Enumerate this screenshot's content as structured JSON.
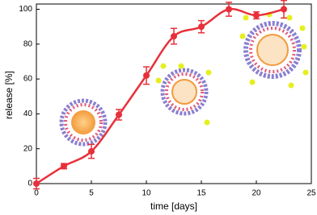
{
  "chart_data": {
    "type": "scatter",
    "x": [
      0,
      2.5,
      5,
      7.5,
      10,
      12.5,
      15,
      17.5,
      20,
      22.5
    ],
    "values": [
      0,
      10,
      18.5,
      39.5,
      62,
      84.5,
      90,
      100,
      96.5,
      100
    ],
    "errors": [
      3,
      1.5,
      4,
      3,
      5,
      4.5,
      3.5,
      4,
      2,
      5
    ],
    "color": "#e8303a",
    "x_label": "time [days]",
    "y_label": "release [%]",
    "xlim": [
      0,
      25
    ],
    "xticks": [
      0,
      5,
      10,
      15,
      20,
      25
    ],
    "ylim": [
      0,
      103
    ],
    "yticks": [
      0,
      20,
      40,
      60,
      80,
      100
    ]
  }
}
